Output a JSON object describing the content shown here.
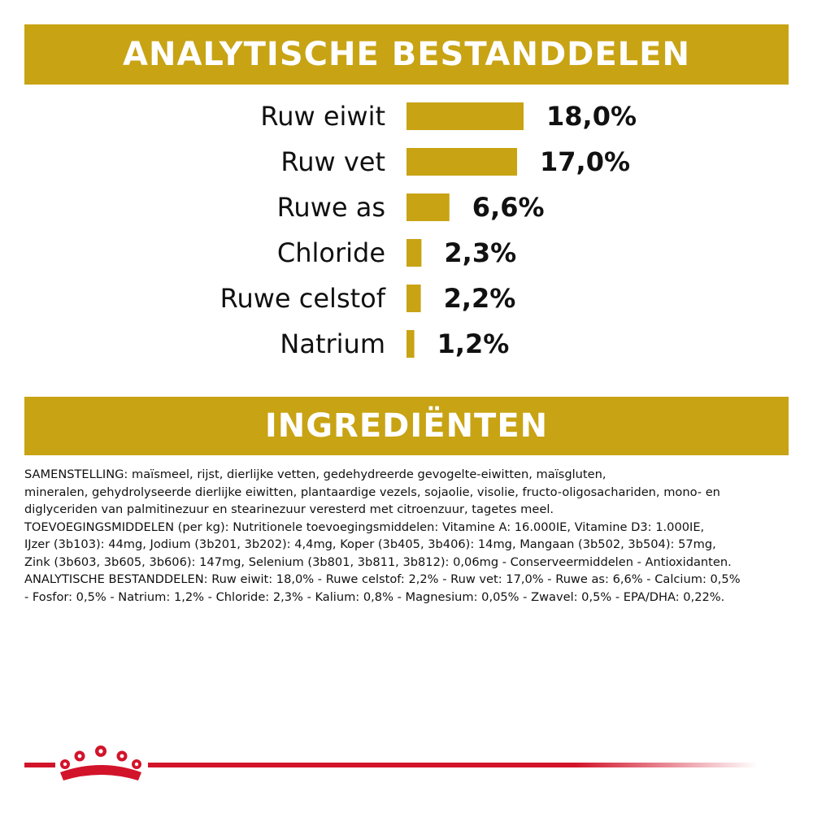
{
  "colors": {
    "gold": "#c8a314",
    "brand_red": "#d2142a",
    "text": "#111111"
  },
  "banners": {
    "analytic": "ANALYTISCHE BESTANDDELEN",
    "ingredients": "INGREDIËNTEN"
  },
  "chart_data": {
    "type": "bar",
    "orientation": "horizontal",
    "title": "ANALYTISCHE BESTANDDELEN",
    "categories": [
      "Ruw eiwit",
      "Ruw vet",
      "Ruwe as",
      "Chloride",
      "Ruwe celstof",
      "Natrium"
    ],
    "values": [
      18.0,
      17.0,
      6.6,
      2.3,
      2.2,
      1.2
    ],
    "value_labels": [
      "18,0%",
      "17,0%",
      "6,6%",
      "2,3%",
      "2,2%",
      "1,2%"
    ],
    "unit": "%",
    "grid": false,
    "color": "#c8a314"
  },
  "ingredients": {
    "lines": [
      "SAMENSTELLING: maïsmeel, rijst, dierlijke vetten, gedehydreerde gevogelte-eiwitten, maïsgluten,",
      "mineralen, gehydrolyseerde dierlijke eiwitten, plantaardige vezels, sojaolie, visolie, fructo-oligosachariden, mono- en",
      "diglyceriden van palmitinezuur en stearinezuur veresterd met citroenzuur, tagetes meel.",
      "TOEVOEGINGSMIDDELEN (per kg): Nutritionele toevoegingsmiddelen: Vitamine A: 16.000IE, Vitamine D3: 1.000IE,",
      "IJzer (3b103): 44mg, Jodium (3b201, 3b202): 4,4mg, Koper (3b405, 3b406): 14mg, Mangaan (3b502, 3b504): 57mg,",
      "Zink (3b603, 3b605, 3b606): 147mg, Selenium (3b801, 3b811, 3b812): 0,06mg - Conserveermiddelen - Antioxidanten.",
      "ANALYTISCHE BESTANDDELEN: Ruw eiwit: 18,0% - Ruwe celstof: 2,2% - Ruw vet: 17,0% - Ruwe as: 6,6% - Calcium: 0,5%",
      "- Fosfor: 0,5% - Natrium: 1,2% - Chloride: 2,3% - Kalium: 0,8% - Magnesium: 0,05% - Zwavel: 0,5% - EPA/DHA: 0,22%."
    ]
  },
  "footer": {
    "logo_icon": "crown-icon"
  }
}
